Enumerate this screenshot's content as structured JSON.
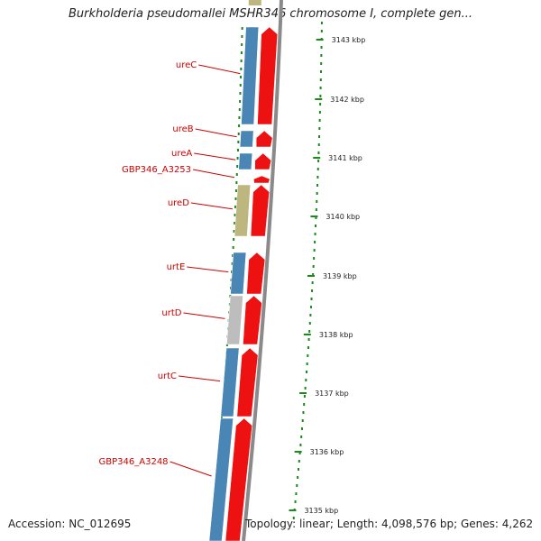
{
  "title": "Burkholderia pseudomallei MSHR346 chromosome I, complete gen...",
  "footer": {
    "accession": "Accession: NC_012695",
    "topology": "Topology: linear; Length: 4,098,576 bp; Genes: 4,262"
  },
  "colors": {
    "cds_blue": "#4a86b5",
    "cds_khaki": "#bdb67e",
    "cds_gray": "#bdbdbd",
    "gene_red": "#ee1111",
    "label_red": "#cc0000",
    "tick_green": "#1a8a1a",
    "backbone_gray": "#8a8a8a"
  },
  "scale_ticks": [
    "3143 kbp",
    "3142 kbp",
    "3141 kbp",
    "3140 kbp",
    "3139 kbp",
    "3138 kbp",
    "3137 kbp",
    "3136 kbp",
    "3135 kbp"
  ],
  "genes": [
    {
      "name": "ureC",
      "cds_color": "blue"
    },
    {
      "name": "ureB",
      "cds_color": "blue"
    },
    {
      "name": "ureA",
      "cds_color": "blue"
    },
    {
      "name": "GBP346_A3253",
      "cds_color": "none"
    },
    {
      "name": "ureD",
      "cds_color": "khaki"
    },
    {
      "name": "urtE",
      "cds_color": "blue"
    },
    {
      "name": "urtD",
      "cds_color": "gray"
    },
    {
      "name": "urtC",
      "cds_color": "blue"
    },
    {
      "name": "GBP346_A3248",
      "cds_color": "blue"
    }
  ]
}
